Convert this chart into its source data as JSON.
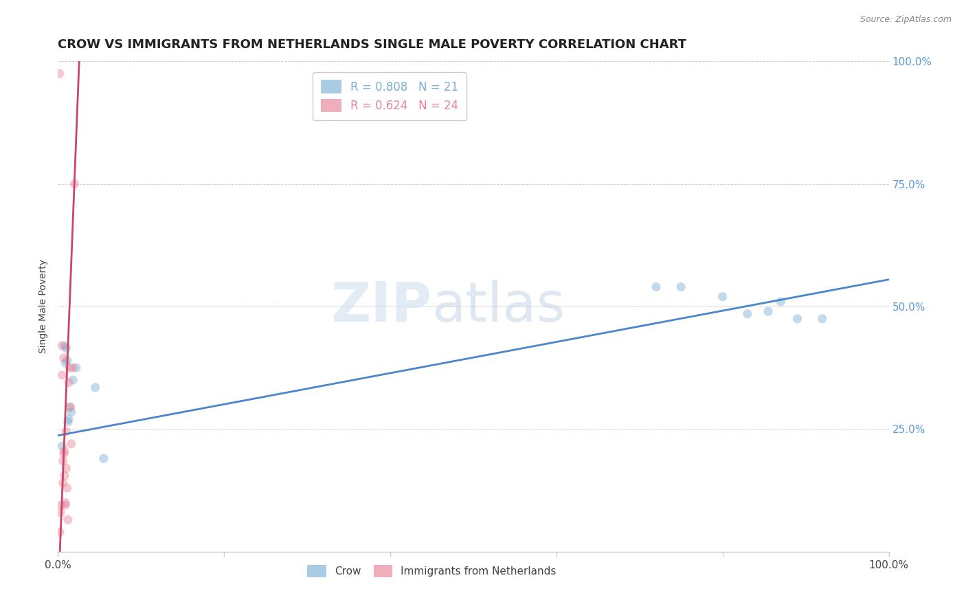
{
  "title": "CROW VS IMMIGRANTS FROM NETHERLANDS SINGLE MALE POVERTY CORRELATION CHART",
  "source": "Source: ZipAtlas.com",
  "ylabel": "Single Male Poverty",
  "xlim": [
    0,
    1.0
  ],
  "ylim": [
    0,
    1.0
  ],
  "legend_entries": [
    {
      "label": "R = 0.808   N = 21",
      "color": "#7bafd4"
    },
    {
      "label": "R = 0.624   N = 24",
      "color": "#e8839a"
    }
  ],
  "crow_scatter_x": [
    0.005,
    0.008,
    0.009,
    0.01,
    0.011,
    0.012,
    0.013,
    0.014,
    0.016,
    0.018,
    0.022,
    0.045,
    0.055,
    0.72,
    0.75,
    0.8,
    0.83,
    0.855,
    0.87,
    0.89,
    0.92
  ],
  "crow_scatter_y": [
    0.215,
    0.42,
    0.385,
    0.415,
    0.39,
    0.265,
    0.27,
    0.295,
    0.285,
    0.35,
    0.375,
    0.335,
    0.19,
    0.54,
    0.54,
    0.52,
    0.485,
    0.49,
    0.51,
    0.475,
    0.475
  ],
  "netherlands_scatter_x": [
    0.002,
    0.002,
    0.003,
    0.004,
    0.005,
    0.005,
    0.006,
    0.006,
    0.007,
    0.007,
    0.008,
    0.008,
    0.009,
    0.009,
    0.01,
    0.01,
    0.011,
    0.012,
    0.013,
    0.014,
    0.015,
    0.016,
    0.018,
    0.02
  ],
  "netherlands_scatter_y": [
    0.975,
    0.04,
    0.08,
    0.095,
    0.42,
    0.36,
    0.185,
    0.14,
    0.395,
    0.2,
    0.155,
    0.205,
    0.095,
    0.1,
    0.245,
    0.17,
    0.13,
    0.065,
    0.345,
    0.375,
    0.295,
    0.22,
    0.375,
    0.75
  ],
  "crow_line_x": [
    0.0,
    1.0
  ],
  "crow_line_y": [
    0.237,
    0.555
  ],
  "netherlands_line_x": [
    0.0,
    0.026
  ],
  "netherlands_line_y": [
    -0.1,
    1.02
  ],
  "crow_color": "#7bafd4",
  "netherlands_color": "#e8839a",
  "crow_line_color": "#4a86c8",
  "netherlands_line_color": "#cc4466",
  "watermark_zip": "ZIP",
  "watermark_atlas": "atlas",
  "background_color": "#ffffff",
  "scatter_size": 90,
  "scatter_alpha": 0.45,
  "ytick_positions": [
    0.25,
    0.5,
    0.75,
    1.0
  ],
  "ytick_labels": [
    "25.0%",
    "50.0%",
    "75.0%",
    "100.0%"
  ],
  "xtick_positions": [
    0.0,
    0.2,
    0.4,
    0.6,
    0.8,
    1.0
  ],
  "grid_color": "#cccccc",
  "title_fontsize": 13,
  "ytick_fontsize": 11,
  "ytick_color": "#5b9bd5"
}
